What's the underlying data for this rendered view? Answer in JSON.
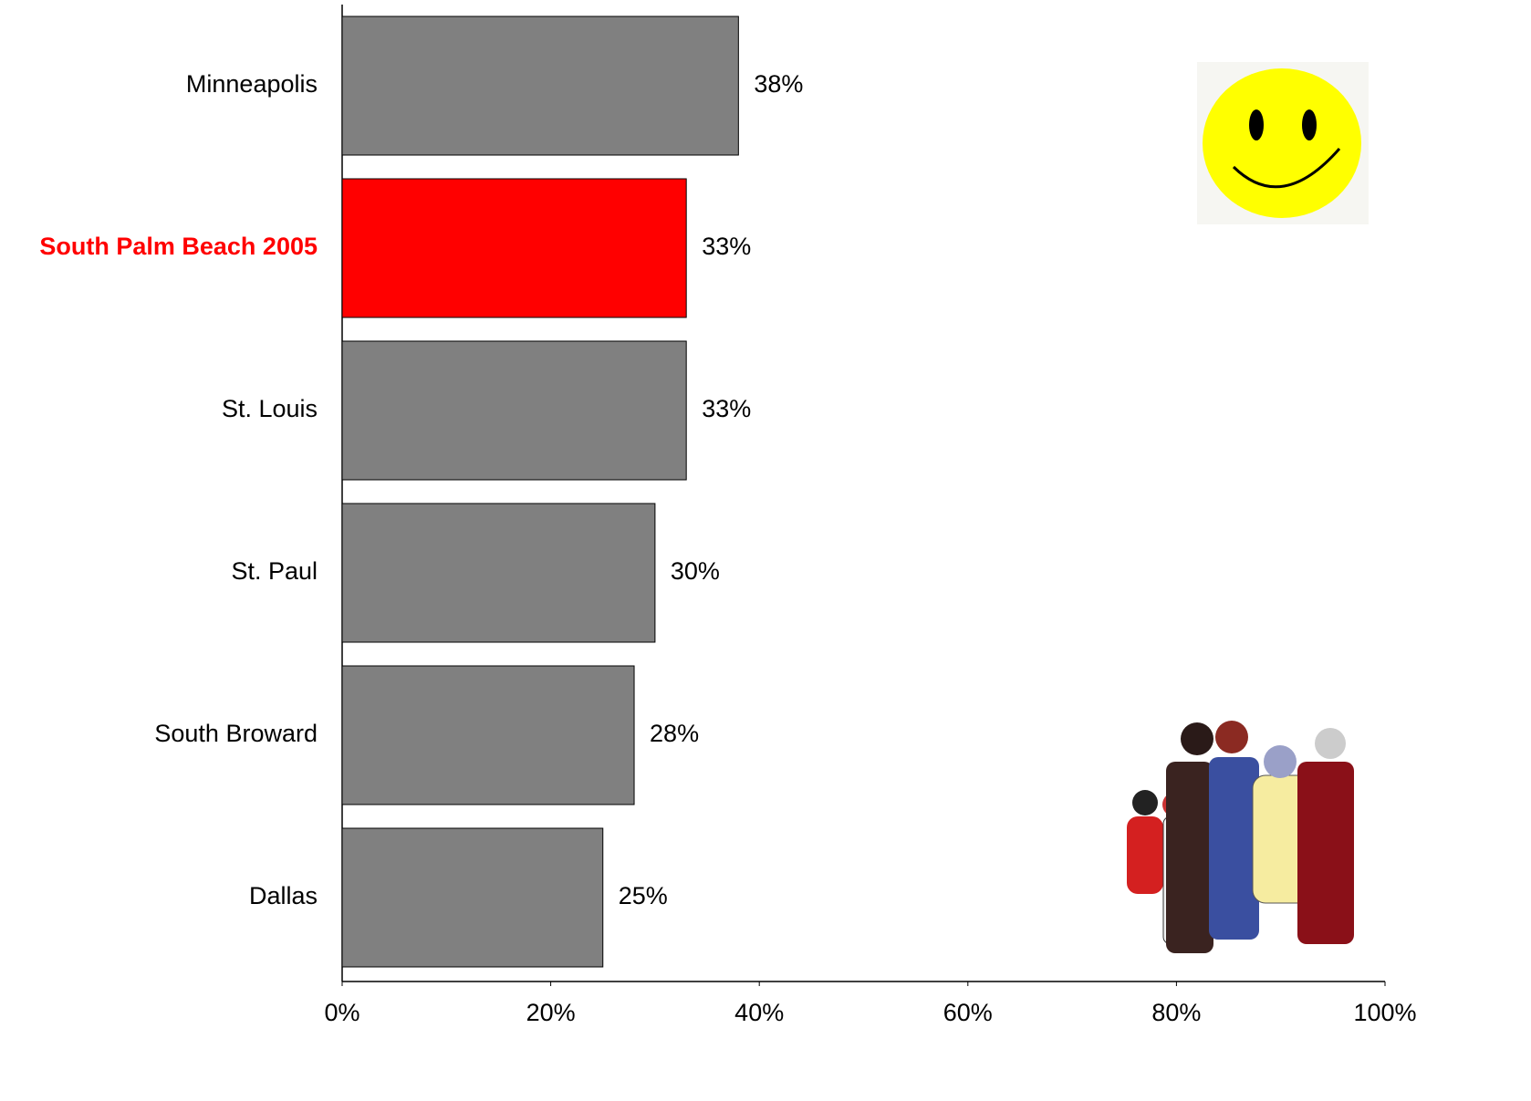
{
  "chart_data": {
    "type": "hbar",
    "categories": [
      "Minneapolis",
      "South Palm Beach 2005",
      "St. Louis",
      "St. Paul",
      "South Broward",
      "Dallas"
    ],
    "values": [
      38,
      33,
      33,
      30,
      28,
      25
    ],
    "value_labels": [
      "38%",
      "33%",
      "33%",
      "30%",
      "28%",
      "25%"
    ],
    "color": "#808080",
    "highlight": 1,
    "highlight_color": "#ff0000",
    "xlim": [
      0,
      100
    ],
    "xticks": [
      {
        "value": 0,
        "label": "0%"
      },
      {
        "value": 20,
        "label": "20%"
      },
      {
        "value": 40,
        "label": "40%"
      },
      {
        "value": 60,
        "label": "60%"
      },
      {
        "value": 80,
        "label": "80%"
      },
      {
        "value": 100,
        "label": "100%"
      }
    ],
    "grid": false
  }
}
